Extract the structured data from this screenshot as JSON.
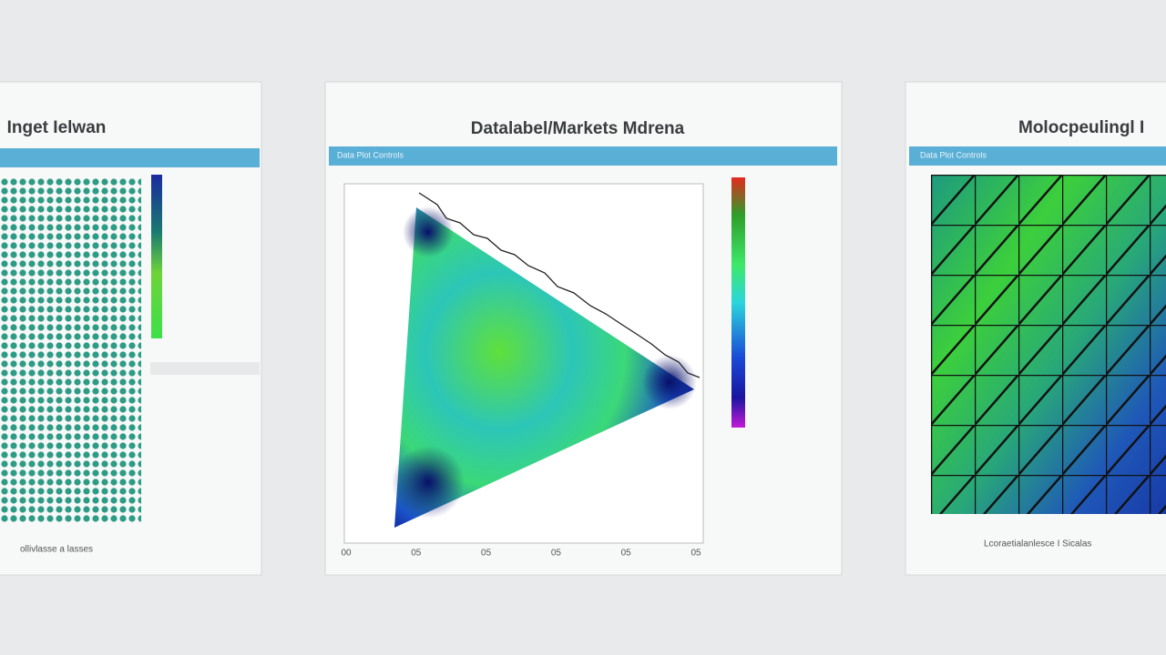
{
  "windows": [
    {
      "title": "Inget Ielwan",
      "toolbar": "",
      "footer": "ollivlasse a lasses"
    },
    {
      "title": "Datalabel/Markets Mdrena",
      "toolbar": "Data Plot Controls",
      "footer": "",
      "x_labels": [
        "00",
        "05",
        "05",
        "05",
        "05",
        "05"
      ]
    },
    {
      "title": "Molocpeulingl I",
      "toolbar": "Data Plot Controls",
      "footer": "Lcoraetialanlesce I  Sicalas"
    }
  ]
}
